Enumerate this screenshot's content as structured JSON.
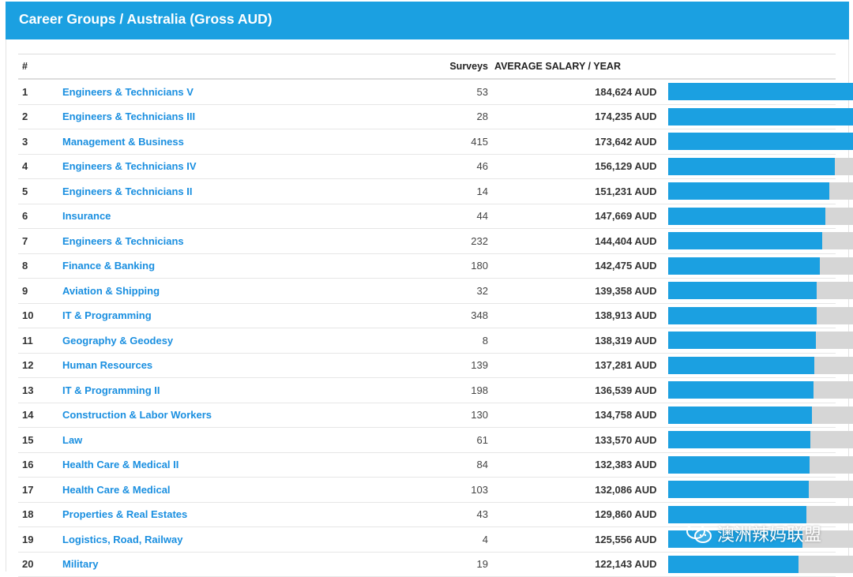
{
  "header": {
    "title": "Career Groups / Australia (Gross AUD)"
  },
  "table": {
    "col_rank": "#",
    "col_surveys": "Surveys",
    "col_salary": "AVERAGE SALARY / YEAR",
    "max_salary": 184624,
    "rows": [
      {
        "rank": "1",
        "name": "Engineers & Technicians V",
        "surveys": "53",
        "salary": "184,624 AUD",
        "value": 184624
      },
      {
        "rank": "2",
        "name": "Engineers & Technicians III",
        "surveys": "28",
        "salary": "174,235 AUD",
        "value": 174235
      },
      {
        "rank": "3",
        "name": "Management & Business",
        "surveys": "415",
        "salary": "173,642 AUD",
        "value": 173642
      },
      {
        "rank": "4",
        "name": "Engineers & Technicians IV",
        "surveys": "46",
        "salary": "156,129 AUD",
        "value": 156129
      },
      {
        "rank": "5",
        "name": "Engineers & Technicians II",
        "surveys": "14",
        "salary": "151,231 AUD",
        "value": 151231
      },
      {
        "rank": "6",
        "name": "Insurance",
        "surveys": "44",
        "salary": "147,669 AUD",
        "value": 147669
      },
      {
        "rank": "7",
        "name": "Engineers & Technicians",
        "surveys": "232",
        "salary": "144,404 AUD",
        "value": 144404
      },
      {
        "rank": "8",
        "name": "Finance & Banking",
        "surveys": "180",
        "salary": "142,475 AUD",
        "value": 142475
      },
      {
        "rank": "9",
        "name": "Aviation & Shipping",
        "surveys": "32",
        "salary": "139,358 AUD",
        "value": 139358
      },
      {
        "rank": "10",
        "name": "IT & Programming",
        "surveys": "348",
        "salary": "138,913 AUD",
        "value": 138913
      },
      {
        "rank": "11",
        "name": "Geography & Geodesy",
        "surveys": "8",
        "salary": "138,319 AUD",
        "value": 138319
      },
      {
        "rank": "12",
        "name": "Human Resources",
        "surveys": "139",
        "salary": "137,281 AUD",
        "value": 137281
      },
      {
        "rank": "13",
        "name": "IT & Programming II",
        "surveys": "198",
        "salary": "136,539 AUD",
        "value": 136539
      },
      {
        "rank": "14",
        "name": "Construction & Labor Workers",
        "surveys": "130",
        "salary": "134,758 AUD",
        "value": 134758
      },
      {
        "rank": "15",
        "name": "Law",
        "surveys": "61",
        "salary": "133,570 AUD",
        "value": 133570
      },
      {
        "rank": "16",
        "name": "Health Care & Medical II",
        "surveys": "84",
        "salary": "132,383 AUD",
        "value": 132383
      },
      {
        "rank": "17",
        "name": "Health Care & Medical",
        "surveys": "103",
        "salary": "132,086 AUD",
        "value": 132086
      },
      {
        "rank": "18",
        "name": "Properties & Real Estates",
        "surveys": "43",
        "salary": "129,860 AUD",
        "value": 129860
      },
      {
        "rank": "19",
        "name": "Logistics, Road, Railway",
        "surveys": "4",
        "salary": "125,556 AUD",
        "value": 125556
      },
      {
        "rank": "20",
        "name": "Military",
        "surveys": "19",
        "salary": "122,143 AUD",
        "value": 122143
      }
    ]
  },
  "watermark": {
    "text": "澳洲辣妈联盟",
    "icon": "wechat-icon"
  },
  "colors": {
    "accent": "#1ba0e1",
    "link": "#1a8fe0",
    "track": "#d6d6d6"
  }
}
